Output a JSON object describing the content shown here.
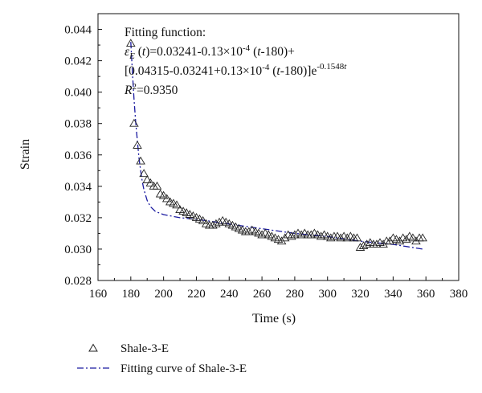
{
  "chart_data": {
    "type": "scatter",
    "title": "",
    "xlabel": "Time (s)",
    "ylabel": "Strain",
    "xlim": [
      160,
      380
    ],
    "ylim": [
      0.028,
      0.045
    ],
    "xticks": [
      160,
      180,
      200,
      220,
      240,
      260,
      280,
      300,
      320,
      340,
      360,
      380
    ],
    "yticks": [
      0.028,
      0.03,
      0.032,
      0.034,
      0.036,
      0.038,
      0.04,
      0.042,
      0.044
    ],
    "ytick_labels": [
      "0.028",
      "0.030",
      "0.032",
      "0.034",
      "0.036",
      "0.038",
      "0.040",
      "0.042",
      "0.044"
    ],
    "grid": false,
    "legend_position": "bottom-left, below plot",
    "annotation": {
      "line1": "Fitting function:",
      "line2": "εE (t)=0.03241-0.13×10-4 (t-180)+",
      "line3": "[0.04315-0.03241+0.13×10-4 (t-180)]e-0.1548t",
      "line4": "R2=0.9350",
      "parts": {
        "l2_eps": "ε",
        "l2_sub": "E",
        "l2_a": " (",
        "l2_t1": "t",
        "l2_b": ")=0.03241-0.13×10",
        "l2_exp": "-4",
        "l2_c": " (",
        "l2_t2": "t",
        "l2_d": "-180)+",
        "l3_a": "[0.04315-0.03241+0.13×10",
        "l3_exp": "-4",
        "l3_b": " (",
        "l3_t": "t",
        "l3_c": "-180)]e",
        "l3_exp2": "-0.1548",
        "l3_exp2_t": "t",
        "l4_r": "R",
        "l4_sup": "2",
        "l4_rest": "=0.9350"
      }
    },
    "series": [
      {
        "name": "Shale-3-E",
        "kind": "scatter",
        "marker": "triangle",
        "color": "#222222",
        "points": [
          [
            180,
            0.0431
          ],
          [
            182,
            0.038
          ],
          [
            184,
            0.0366
          ],
          [
            186,
            0.0356
          ],
          [
            188,
            0.0348
          ],
          [
            190,
            0.0344
          ],
          [
            192,
            0.0342
          ],
          [
            194,
            0.034
          ],
          [
            196,
            0.034
          ],
          [
            198,
            0.0335
          ],
          [
            200,
            0.0334
          ],
          [
            202,
            0.0332
          ],
          [
            204,
            0.033
          ],
          [
            206,
            0.0329
          ],
          [
            208,
            0.0328
          ],
          [
            210,
            0.0325
          ],
          [
            212,
            0.0324
          ],
          [
            214,
            0.0323
          ],
          [
            216,
            0.0322
          ],
          [
            218,
            0.0321
          ],
          [
            220,
            0.032
          ],
          [
            222,
            0.0319
          ],
          [
            224,
            0.0318
          ],
          [
            226,
            0.0316
          ],
          [
            228,
            0.0315
          ],
          [
            230,
            0.0315
          ],
          [
            232,
            0.0316
          ],
          [
            234,
            0.0317
          ],
          [
            236,
            0.0318
          ],
          [
            238,
            0.0317
          ],
          [
            240,
            0.0316
          ],
          [
            242,
            0.0315
          ],
          [
            244,
            0.0314
          ],
          [
            246,
            0.0313
          ],
          [
            248,
            0.0312
          ],
          [
            250,
            0.0311
          ],
          [
            252,
            0.0311
          ],
          [
            254,
            0.0312
          ],
          [
            256,
            0.0311
          ],
          [
            258,
            0.031
          ],
          [
            260,
            0.0309
          ],
          [
            262,
            0.031
          ],
          [
            264,
            0.0309
          ],
          [
            266,
            0.0308
          ],
          [
            268,
            0.0307
          ],
          [
            270,
            0.0306
          ],
          [
            272,
            0.0305
          ],
          [
            274,
            0.0307
          ],
          [
            276,
            0.0309
          ],
          [
            278,
            0.0308
          ],
          [
            280,
            0.0309
          ],
          [
            282,
            0.031
          ],
          [
            284,
            0.0309
          ],
          [
            286,
            0.031
          ],
          [
            288,
            0.0309
          ],
          [
            290,
            0.0309
          ],
          [
            292,
            0.031
          ],
          [
            294,
            0.0309
          ],
          [
            296,
            0.0308
          ],
          [
            298,
            0.0309
          ],
          [
            300,
            0.0308
          ],
          [
            302,
            0.0307
          ],
          [
            304,
            0.0308
          ],
          [
            306,
            0.0308
          ],
          [
            308,
            0.0307
          ],
          [
            310,
            0.0308
          ],
          [
            312,
            0.0307
          ],
          [
            314,
            0.0308
          ],
          [
            316,
            0.0307
          ],
          [
            318,
            0.0307
          ],
          [
            320,
            0.0301
          ],
          [
            322,
            0.0302
          ],
          [
            324,
            0.0303
          ],
          [
            326,
            0.0304
          ],
          [
            328,
            0.0303
          ],
          [
            330,
            0.0303
          ],
          [
            332,
            0.0304
          ],
          [
            334,
            0.0303
          ],
          [
            336,
            0.0305
          ],
          [
            338,
            0.0305
          ],
          [
            340,
            0.0307
          ],
          [
            342,
            0.0306
          ],
          [
            344,
            0.0305
          ],
          [
            346,
            0.0307
          ],
          [
            348,
            0.0306
          ],
          [
            350,
            0.0308
          ],
          [
            352,
            0.0307
          ],
          [
            354,
            0.0305
          ],
          [
            356,
            0.0307
          ],
          [
            358,
            0.0307
          ]
        ]
      },
      {
        "name": "Fitting curve of Shale-3-E",
        "kind": "line",
        "style": "dash-dot",
        "color": "#1a1aa0",
        "points": [
          [
            180,
            0.0432
          ],
          [
            181,
            0.0412
          ],
          [
            182,
            0.0395
          ],
          [
            183,
            0.0381
          ],
          [
            184,
            0.0369
          ],
          [
            185,
            0.0358
          ],
          [
            186,
            0.035
          ],
          [
            187,
            0.0343
          ],
          [
            188,
            0.0338
          ],
          [
            190,
            0.0331
          ],
          [
            192,
            0.0327
          ],
          [
            195,
            0.0324
          ],
          [
            200,
            0.0322
          ],
          [
            210,
            0.032
          ],
          [
            220,
            0.0319
          ],
          [
            240,
            0.0316
          ],
          [
            260,
            0.0313
          ],
          [
            280,
            0.031
          ],
          [
            300,
            0.0308
          ],
          [
            320,
            0.0305
          ],
          [
            340,
            0.0303
          ],
          [
            358,
            0.03
          ]
        ]
      }
    ]
  }
}
